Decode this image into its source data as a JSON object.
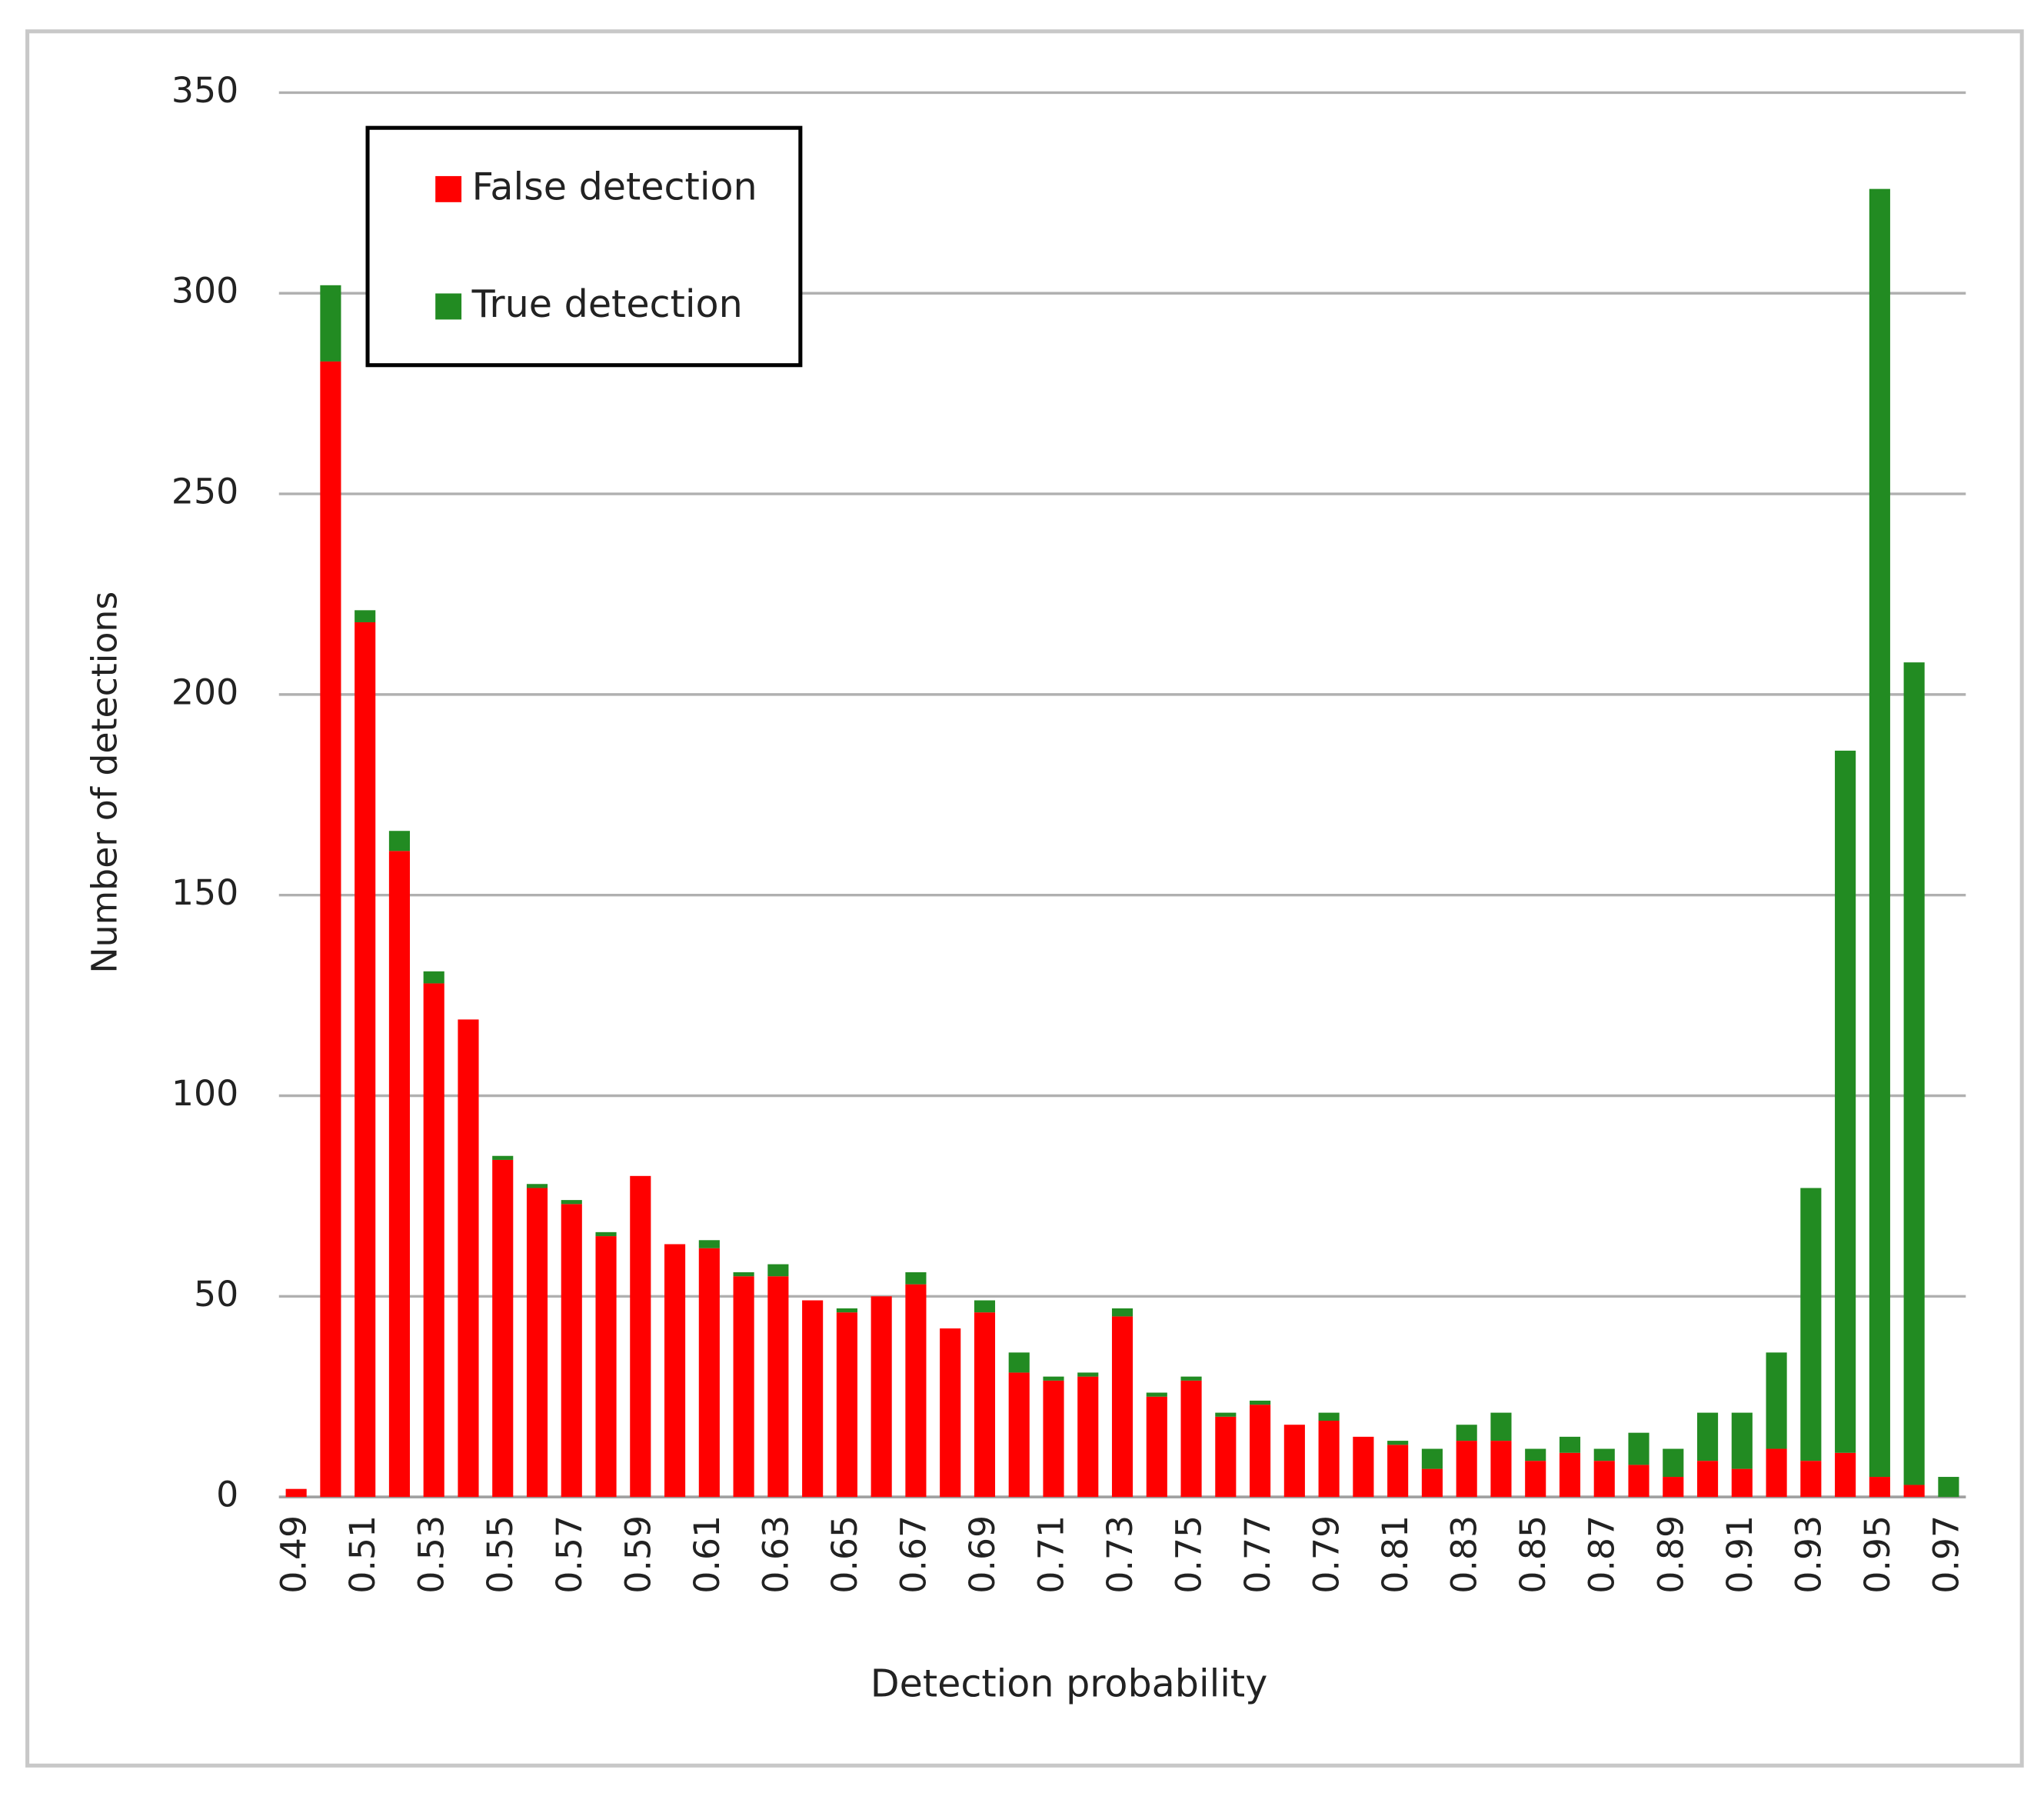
{
  "chart_data": {
    "type": "stacked-bar",
    "x_label": "Detection probability",
    "y_label": "Number of detections",
    "categories": [
      "0.49",
      null,
      "0.51",
      null,
      "0.53",
      null,
      "0.55",
      null,
      "0.57",
      null,
      "0.59",
      null,
      "0.61",
      null,
      "0.63",
      null,
      "0.65",
      null,
      "0.67",
      null,
      "0.69",
      null,
      "0.71",
      null,
      "0.73",
      null,
      "0.75",
      null,
      "0.77",
      null,
      "0.79",
      null,
      "0.81",
      null,
      "0.83",
      null,
      "0.85",
      null,
      "0.87",
      null,
      "0.89",
      null,
      "0.91",
      null,
      "0.93",
      null,
      "0.95",
      null,
      "0.97"
    ],
    "series": [
      {
        "name": "False detection",
        "color": "#ff0000",
        "values": [
          2,
          283,
          218,
          161,
          128,
          119,
          84,
          77,
          73,
          65,
          80,
          63,
          62,
          55,
          55,
          49,
          46,
          50,
          53,
          42,
          46,
          31,
          29,
          30,
          45,
          25,
          29,
          20,
          23,
          18,
          19,
          15,
          13,
          7,
          14,
          14,
          9,
          11,
          9,
          8,
          5,
          9,
          7,
          12,
          9,
          11,
          5,
          3,
          0
        ]
      },
      {
        "name": "True detection",
        "color": "#228b22",
        "values": [
          0,
          19,
          3,
          5,
          3,
          0,
          1,
          1,
          1,
          1,
          0,
          0,
          2,
          1,
          3,
          0,
          1,
          0,
          3,
          0,
          3,
          5,
          1,
          1,
          2,
          1,
          1,
          1,
          1,
          0,
          2,
          0,
          1,
          5,
          4,
          7,
          3,
          4,
          3,
          8,
          7,
          12,
          14,
          24,
          68,
          175,
          321,
          205,
          5
        ]
      }
    ],
    "ylim": [
      0,
      350
    ],
    "yticks": [
      0,
      50,
      100,
      150,
      200,
      250,
      300,
      350
    ],
    "grid": true,
    "legend": "top-left"
  }
}
